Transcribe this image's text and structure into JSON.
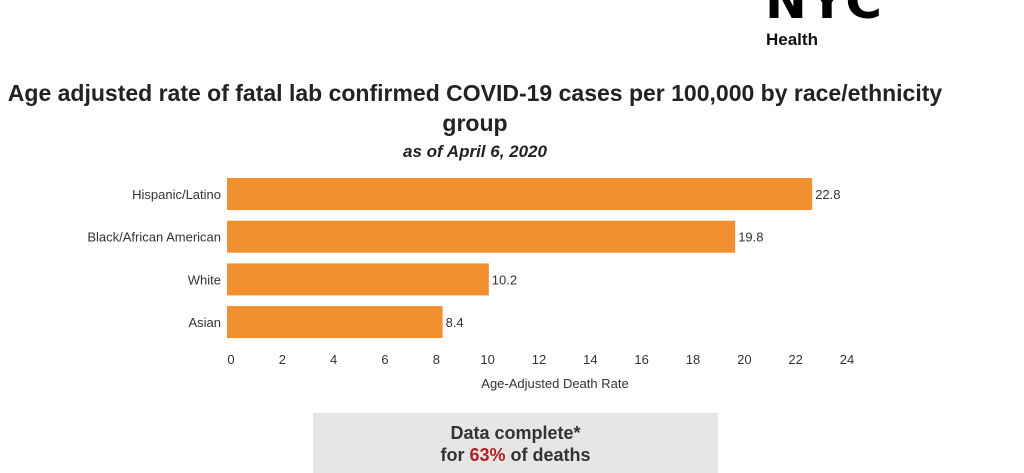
{
  "logo": {
    "text": "NYC",
    "subtext": "Health"
  },
  "chart_data": {
    "type": "bar",
    "orientation": "horizontal",
    "title": "Age adjusted rate of fatal lab confirmed COVID-19 cases per 100,000 by race/ethnicity group",
    "subtitle": "as of April 6, 2020",
    "categories": [
      "Hispanic/Latino",
      "Black/African American",
      "White",
      "Asian"
    ],
    "values": [
      22.8,
      19.8,
      10.2,
      8.4
    ],
    "value_labels": [
      "22.8",
      "19.8",
      "10.2",
      "8.4"
    ],
    "xlabel": "Age-Adjusted Death Rate",
    "xlim": [
      0,
      24
    ],
    "xticks": [
      "0",
      "2",
      "4",
      "6",
      "8",
      "10",
      "12",
      "14",
      "16",
      "18",
      "20",
      "22",
      "24"
    ],
    "bar_color": "#f0902e",
    "grid": false
  },
  "note": {
    "line1": "Data complete*",
    "line2_pre": "for ",
    "line2_pct": "63%",
    "line2_post": " of deaths"
  }
}
